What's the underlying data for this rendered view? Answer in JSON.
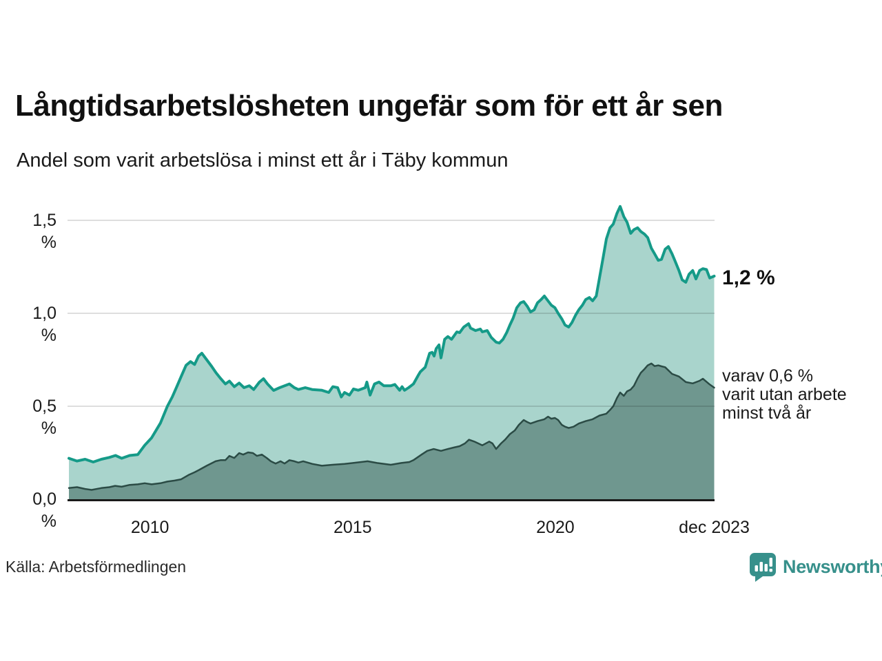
{
  "header": {
    "title": "Långtidsarbetslösheten ungefär som för ett år sen",
    "subtitle": "Andel som varit arbetslösa i minst ett år i Täby kommun"
  },
  "annotations": {
    "end_value_label": "1,2 %",
    "secondary_label_lines": [
      "varav 0,6 %",
      "varit utan arbete",
      "minst två år"
    ]
  },
  "footer": {
    "source": "Källa: Arbetsförmedlingen",
    "brand": "Newsworthy"
  },
  "colors": {
    "line_primary": "#159a88",
    "fill_primary": "#a9d4cc",
    "line_secondary": "#2b4b45",
    "fill_secondary": "#6f978f",
    "gridline": "rgba(0,0,0,0.13)",
    "baseline": "#1a1a1a",
    "brand_teal": "#37908b",
    "text": "#1a1a1a"
  },
  "chart_data": {
    "type": "area",
    "title": "Långtidsarbetslösheten ungefär som för ett år sen",
    "subtitle": "Andel som varit arbetslösa i minst ett år i Täby kommun",
    "x_domain": [
      2008.0,
      2023.92
    ],
    "ylim": [
      0,
      1.65
    ],
    "grid": "horizontal",
    "yticks": [
      {
        "label": "0,0 %",
        "value": 0.0
      },
      {
        "label": "0,5 %",
        "value": 0.5
      },
      {
        "label": "1,0 %",
        "value": 1.0
      },
      {
        "label": "1,5 %",
        "value": 1.5
      }
    ],
    "xticks": [
      {
        "label": "2010",
        "x": 2010
      },
      {
        "label": "2015",
        "x": 2015
      },
      {
        "label": "2020",
        "x": 2020
      },
      {
        "label": "dec 2023",
        "x": 2023.92
      }
    ],
    "series": [
      {
        "name": "arbetslösa minst ett år",
        "end_value": "1,2 %",
        "points": [
          [
            2008.0,
            0.22
          ],
          [
            2008.2,
            0.205
          ],
          [
            2008.4,
            0.215
          ],
          [
            2008.6,
            0.2
          ],
          [
            2008.8,
            0.215
          ],
          [
            2009.0,
            0.225
          ],
          [
            2009.15,
            0.235
          ],
          [
            2009.3,
            0.22
          ],
          [
            2009.5,
            0.235
          ],
          [
            2009.7,
            0.24
          ],
          [
            2009.87,
            0.29
          ],
          [
            2010.04,
            0.33
          ],
          [
            2010.26,
            0.41
          ],
          [
            2010.43,
            0.5
          ],
          [
            2010.55,
            0.55
          ],
          [
            2010.67,
            0.61
          ],
          [
            2010.77,
            0.66
          ],
          [
            2010.89,
            0.72
          ],
          [
            2011.0,
            0.74
          ],
          [
            2011.1,
            0.725
          ],
          [
            2011.2,
            0.77
          ],
          [
            2011.28,
            0.785
          ],
          [
            2011.4,
            0.75
          ],
          [
            2011.52,
            0.715
          ],
          [
            2011.63,
            0.68
          ],
          [
            2011.74,
            0.65
          ],
          [
            2011.86,
            0.62
          ],
          [
            2011.96,
            0.635
          ],
          [
            2012.08,
            0.605
          ],
          [
            2012.2,
            0.625
          ],
          [
            2012.32,
            0.6
          ],
          [
            2012.45,
            0.61
          ],
          [
            2012.56,
            0.59
          ],
          [
            2012.7,
            0.63
          ],
          [
            2012.8,
            0.648
          ],
          [
            2012.9,
            0.62
          ],
          [
            2013.05,
            0.585
          ],
          [
            2013.2,
            0.6
          ],
          [
            2013.44,
            0.62
          ],
          [
            2013.56,
            0.6
          ],
          [
            2013.66,
            0.59
          ],
          [
            2013.83,
            0.6
          ],
          [
            2014.0,
            0.59
          ],
          [
            2014.24,
            0.586
          ],
          [
            2014.41,
            0.574
          ],
          [
            2014.51,
            0.605
          ],
          [
            2014.63,
            0.6
          ],
          [
            2014.72,
            0.55
          ],
          [
            2014.8,
            0.574
          ],
          [
            2014.92,
            0.56
          ],
          [
            2015.02,
            0.593
          ],
          [
            2015.14,
            0.586
          ],
          [
            2015.31,
            0.6
          ],
          [
            2015.35,
            0.63
          ],
          [
            2015.43,
            0.56
          ],
          [
            2015.54,
            0.62
          ],
          [
            2015.65,
            0.63
          ],
          [
            2015.77,
            0.61
          ],
          [
            2015.94,
            0.61
          ],
          [
            2016.04,
            0.617
          ],
          [
            2016.16,
            0.586
          ],
          [
            2016.22,
            0.605
          ],
          [
            2016.28,
            0.586
          ],
          [
            2016.38,
            0.6
          ],
          [
            2016.5,
            0.62
          ],
          [
            2016.62,
            0.667
          ],
          [
            2016.67,
            0.685
          ],
          [
            2016.79,
            0.71
          ],
          [
            2016.9,
            0.785
          ],
          [
            2016.96,
            0.79
          ],
          [
            2017.01,
            0.77
          ],
          [
            2017.06,
            0.81
          ],
          [
            2017.13,
            0.83
          ],
          [
            2017.18,
            0.76
          ],
          [
            2017.27,
            0.86
          ],
          [
            2017.35,
            0.875
          ],
          [
            2017.44,
            0.86
          ],
          [
            2017.57,
            0.9
          ],
          [
            2017.64,
            0.896
          ],
          [
            2017.74,
            0.926
          ],
          [
            2017.86,
            0.944
          ],
          [
            2017.91,
            0.92
          ],
          [
            2018.03,
            0.907
          ],
          [
            2018.15,
            0.915
          ],
          [
            2018.2,
            0.9
          ],
          [
            2018.32,
            0.907
          ],
          [
            2018.42,
            0.87
          ],
          [
            2018.54,
            0.845
          ],
          [
            2018.62,
            0.84
          ],
          [
            2018.71,
            0.86
          ],
          [
            2018.8,
            0.896
          ],
          [
            2018.88,
            0.937
          ],
          [
            2018.96,
            0.974
          ],
          [
            2019.05,
            1.03
          ],
          [
            2019.14,
            1.056
          ],
          [
            2019.22,
            1.063
          ],
          [
            2019.31,
            1.037
          ],
          [
            2019.39,
            1.007
          ],
          [
            2019.48,
            1.019
          ],
          [
            2019.56,
            1.056
          ],
          [
            2019.65,
            1.074
          ],
          [
            2019.73,
            1.093
          ],
          [
            2019.82,
            1.067
          ],
          [
            2019.9,
            1.044
          ],
          [
            2019.99,
            1.03
          ],
          [
            2020.07,
            1.0
          ],
          [
            2020.16,
            0.97
          ],
          [
            2020.24,
            0.937
          ],
          [
            2020.33,
            0.926
          ],
          [
            2020.41,
            0.95
          ],
          [
            2020.5,
            0.99
          ],
          [
            2020.58,
            1.019
          ],
          [
            2020.67,
            1.044
          ],
          [
            2020.75,
            1.074
          ],
          [
            2020.84,
            1.085
          ],
          [
            2020.92,
            1.067
          ],
          [
            2021.01,
            1.093
          ],
          [
            2021.09,
            1.19
          ],
          [
            2021.18,
            1.3
          ],
          [
            2021.26,
            1.4
          ],
          [
            2021.35,
            1.46
          ],
          [
            2021.43,
            1.48
          ],
          [
            2021.52,
            1.537
          ],
          [
            2021.6,
            1.575
          ],
          [
            2021.69,
            1.52
          ],
          [
            2021.77,
            1.49
          ],
          [
            2021.86,
            1.43
          ],
          [
            2021.94,
            1.45
          ],
          [
            2022.03,
            1.46
          ],
          [
            2022.11,
            1.44
          ],
          [
            2022.2,
            1.426
          ],
          [
            2022.28,
            1.407
          ],
          [
            2022.37,
            1.35
          ],
          [
            2022.45,
            1.32
          ],
          [
            2022.54,
            1.285
          ],
          [
            2022.62,
            1.29
          ],
          [
            2022.71,
            1.345
          ],
          [
            2022.79,
            1.359
          ],
          [
            2022.88,
            1.32
          ],
          [
            2022.96,
            1.278
          ],
          [
            2023.05,
            1.23
          ],
          [
            2023.13,
            1.18
          ],
          [
            2023.22,
            1.167
          ],
          [
            2023.3,
            1.21
          ],
          [
            2023.39,
            1.23
          ],
          [
            2023.47,
            1.185
          ],
          [
            2023.56,
            1.23
          ],
          [
            2023.64,
            1.24
          ],
          [
            2023.73,
            1.235
          ],
          [
            2023.81,
            1.19
          ],
          [
            2023.92,
            1.2
          ]
        ]
      },
      {
        "name": "varav utan arbete minst två år",
        "end_value": "0,6 %",
        "points": [
          [
            2008.0,
            0.06
          ],
          [
            2008.2,
            0.065
          ],
          [
            2008.4,
            0.055
          ],
          [
            2008.56,
            0.05
          ],
          [
            2008.8,
            0.06
          ],
          [
            2009.0,
            0.065
          ],
          [
            2009.14,
            0.072
          ],
          [
            2009.3,
            0.067
          ],
          [
            2009.5,
            0.077
          ],
          [
            2009.7,
            0.08
          ],
          [
            2009.87,
            0.086
          ],
          [
            2010.04,
            0.08
          ],
          [
            2010.26,
            0.086
          ],
          [
            2010.43,
            0.095
          ],
          [
            2010.6,
            0.1
          ],
          [
            2010.77,
            0.107
          ],
          [
            2010.95,
            0.13
          ],
          [
            2011.1,
            0.145
          ],
          [
            2011.2,
            0.156
          ],
          [
            2011.4,
            0.18
          ],
          [
            2011.62,
            0.204
          ],
          [
            2011.74,
            0.21
          ],
          [
            2011.86,
            0.21
          ],
          [
            2011.96,
            0.233
          ],
          [
            2012.08,
            0.222
          ],
          [
            2012.2,
            0.248
          ],
          [
            2012.3,
            0.24
          ],
          [
            2012.42,
            0.252
          ],
          [
            2012.54,
            0.248
          ],
          [
            2012.64,
            0.233
          ],
          [
            2012.76,
            0.24
          ],
          [
            2012.88,
            0.222
          ],
          [
            2012.98,
            0.204
          ],
          [
            2013.1,
            0.192
          ],
          [
            2013.22,
            0.204
          ],
          [
            2013.32,
            0.192
          ],
          [
            2013.44,
            0.21
          ],
          [
            2013.56,
            0.204
          ],
          [
            2013.66,
            0.197
          ],
          [
            2013.78,
            0.204
          ],
          [
            2014.0,
            0.19
          ],
          [
            2014.24,
            0.18
          ],
          [
            2014.5,
            0.185
          ],
          [
            2014.8,
            0.19
          ],
          [
            2015.1,
            0.197
          ],
          [
            2015.37,
            0.204
          ],
          [
            2015.6,
            0.195
          ],
          [
            2015.94,
            0.185
          ],
          [
            2016.2,
            0.195
          ],
          [
            2016.4,
            0.2
          ],
          [
            2016.5,
            0.21
          ],
          [
            2016.7,
            0.24
          ],
          [
            2016.84,
            0.26
          ],
          [
            2017.0,
            0.27
          ],
          [
            2017.18,
            0.26
          ],
          [
            2017.35,
            0.27
          ],
          [
            2017.5,
            0.278
          ],
          [
            2017.64,
            0.285
          ],
          [
            2017.77,
            0.3
          ],
          [
            2017.87,
            0.32
          ],
          [
            2018.0,
            0.31
          ],
          [
            2018.2,
            0.29
          ],
          [
            2018.37,
            0.31
          ],
          [
            2018.45,
            0.3
          ],
          [
            2018.54,
            0.27
          ],
          [
            2018.66,
            0.3
          ],
          [
            2018.76,
            0.32
          ],
          [
            2018.88,
            0.35
          ],
          [
            2019.0,
            0.37
          ],
          [
            2019.1,
            0.4
          ],
          [
            2019.22,
            0.426
          ],
          [
            2019.31,
            0.415
          ],
          [
            2019.39,
            0.407
          ],
          [
            2019.56,
            0.42
          ],
          [
            2019.73,
            0.43
          ],
          [
            2019.82,
            0.444
          ],
          [
            2019.9,
            0.433
          ],
          [
            2019.99,
            0.437
          ],
          [
            2020.07,
            0.426
          ],
          [
            2020.16,
            0.4
          ],
          [
            2020.24,
            0.39
          ],
          [
            2020.33,
            0.383
          ],
          [
            2020.45,
            0.39
          ],
          [
            2020.58,
            0.407
          ],
          [
            2020.75,
            0.42
          ],
          [
            2020.92,
            0.43
          ],
          [
            2021.09,
            0.45
          ],
          [
            2021.26,
            0.46
          ],
          [
            2021.35,
            0.48
          ],
          [
            2021.43,
            0.5
          ],
          [
            2021.52,
            0.544
          ],
          [
            2021.6,
            0.574
          ],
          [
            2021.69,
            0.556
          ],
          [
            2021.77,
            0.58
          ],
          [
            2021.86,
            0.59
          ],
          [
            2021.94,
            0.61
          ],
          [
            2022.03,
            0.65
          ],
          [
            2022.11,
            0.68
          ],
          [
            2022.2,
            0.7
          ],
          [
            2022.28,
            0.72
          ],
          [
            2022.37,
            0.73
          ],
          [
            2022.45,
            0.716
          ],
          [
            2022.54,
            0.72
          ],
          [
            2022.62,
            0.715
          ],
          [
            2022.71,
            0.71
          ],
          [
            2022.88,
            0.674
          ],
          [
            2023.05,
            0.66
          ],
          [
            2023.22,
            0.63
          ],
          [
            2023.39,
            0.623
          ],
          [
            2023.56,
            0.637
          ],
          [
            2023.64,
            0.648
          ],
          [
            2023.81,
            0.617
          ],
          [
            2023.92,
            0.6
          ]
        ]
      }
    ]
  }
}
